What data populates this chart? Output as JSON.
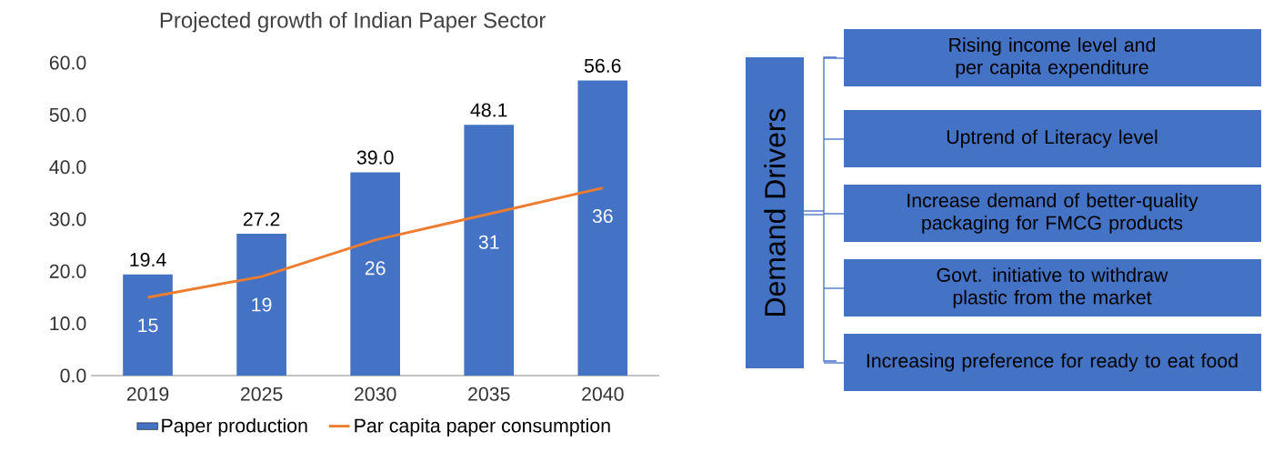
{
  "chart_data": [
    {
      "type": "bar",
      "title": "Projected growth of Indian Paper Sector",
      "categories": [
        "2019",
        "2025",
        "2030",
        "2035",
        "2040"
      ],
      "series": [
        {
          "name": "Paper production",
          "type": "bar",
          "color": "#4472c4",
          "values": [
            19.4,
            27.2,
            39.0,
            48.1,
            56.6
          ],
          "value_labels": [
            "19.4",
            "27.2",
            "39.0",
            "48.1",
            "56.6"
          ]
        },
        {
          "name": "Par capita paper consumption",
          "type": "line",
          "color": "#ed7d31",
          "values": [
            15,
            19,
            26,
            31,
            36
          ],
          "value_labels": [
            "15",
            "19",
            "26",
            "31",
            "36"
          ]
        }
      ],
      "ylim": [
        0,
        60
      ],
      "yticks": [
        {
          "value": 0,
          "label": "0.0"
        },
        {
          "value": 10,
          "label": "10.0"
        },
        {
          "value": 20,
          "label": "20.0"
        },
        {
          "value": 30,
          "label": "30.0"
        },
        {
          "value": 40,
          "label": "40.0"
        },
        {
          "value": 50,
          "label": "50.0"
        },
        {
          "value": 60,
          "label": "60.0"
        }
      ],
      "legend": "bottom",
      "marker": "none"
    },
    {
      "type": "other",
      "title": "Demand Drivers",
      "annotations": [
        "Rising income level and per capita expenditure",
        "Uptrend of Literacy level",
        "Increase demand of better-quality packaging for FMCG products",
        "Govt. initiative to withdraw plastic from the market",
        "Increasing preference for ready to eat food"
      ]
    }
  ]
}
